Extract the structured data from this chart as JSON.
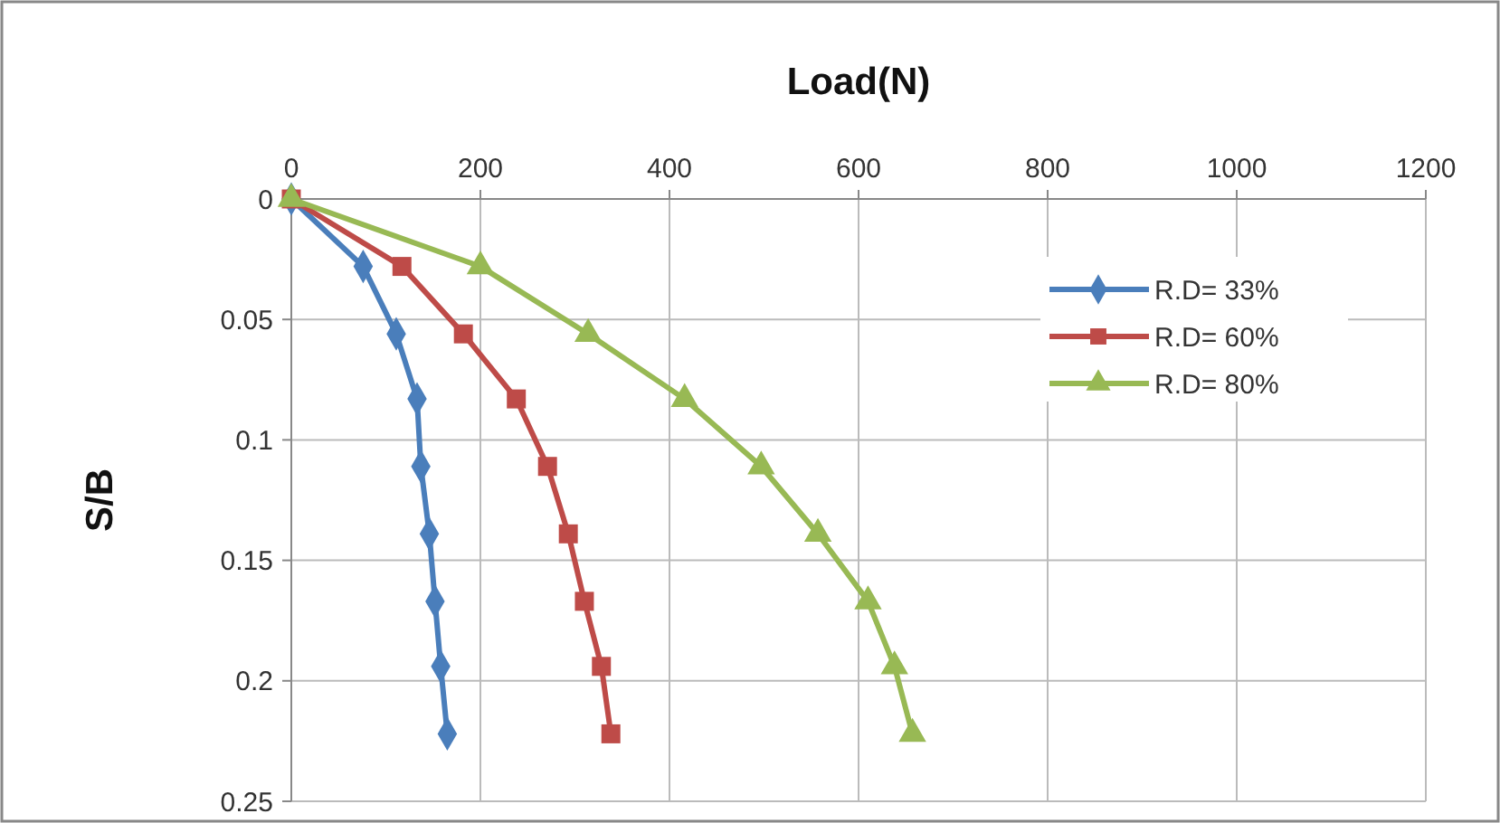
{
  "chart_data": {
    "type": "line",
    "xlabel": "Load(N)",
    "ylabel": "S/B",
    "xlim": [
      0,
      1200
    ],
    "xticks": [
      0,
      200,
      400,
      600,
      800,
      1000,
      1200
    ],
    "ylim": [
      0.25,
      0
    ],
    "yticks": [
      0,
      0.05,
      0.1,
      0.15,
      0.2,
      0.25
    ],
    "grid": true,
    "legend": "top right",
    "line_style": "solid",
    "series": [
      {
        "name": "R.D= 33%",
        "color": "#4a7ebb",
        "marker": "diamond",
        "x": [
          0,
          76,
          111,
          133,
          137,
          146,
          152,
          158,
          165
        ],
        "values": [
          0,
          0.028,
          0.056,
          0.083,
          0.111,
          0.139,
          0.167,
          0.194,
          0.222
        ]
      },
      {
        "name": "R.D= 60%",
        "color": "#be4b48",
        "marker": "square",
        "x": [
          0,
          117,
          182,
          238,
          271,
          293,
          310,
          328,
          338
        ],
        "values": [
          0,
          0.028,
          0.056,
          0.083,
          0.111,
          0.139,
          0.167,
          0.194,
          0.222
        ]
      },
      {
        "name": "R.D= 80%",
        "color": "#98b954",
        "marker": "triangle",
        "x": [
          0,
          200,
          314,
          416,
          497,
          557,
          610,
          638,
          657
        ],
        "values": [
          0,
          0.028,
          0.056,
          0.083,
          0.111,
          0.139,
          0.167,
          0.194,
          0.222
        ]
      }
    ]
  }
}
